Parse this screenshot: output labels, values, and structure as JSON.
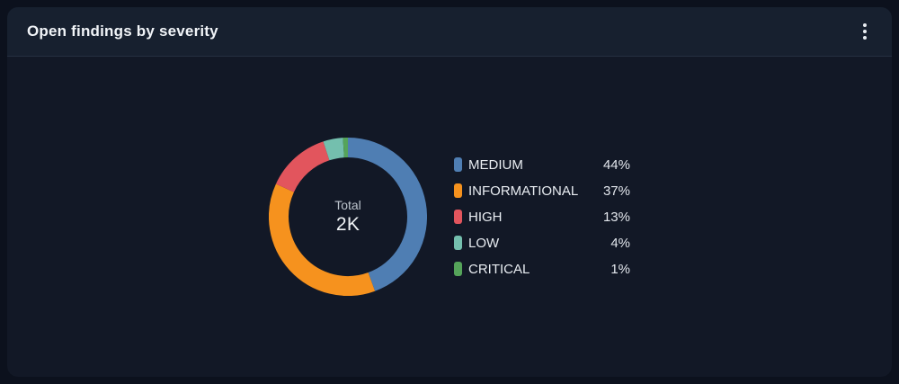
{
  "card": {
    "title": "Open findings by severity",
    "menu_icon": "kebab-vertical-icon"
  },
  "chart_data": {
    "type": "pie",
    "variant": "donut",
    "title": "Open findings by severity",
    "center_label": "Total",
    "center_value": "2K",
    "legend_position": "right",
    "start_angle_deg": 0,
    "direction": "clockwise",
    "segments": [
      {
        "label": "MEDIUM",
        "percent": 44,
        "percent_label": "44%",
        "color": "#4f7eb3"
      },
      {
        "label": "INFORMATIONAL",
        "percent": 37,
        "percent_label": "37%",
        "color": "#f6921e"
      },
      {
        "label": "HIGH",
        "percent": 13,
        "percent_label": "13%",
        "color": "#e2555d"
      },
      {
        "label": "LOW",
        "percent": 4,
        "percent_label": "4%",
        "color": "#74bfae"
      },
      {
        "label": "CRITICAL",
        "percent": 1,
        "percent_label": "1%",
        "color": "#55a45a"
      }
    ]
  }
}
